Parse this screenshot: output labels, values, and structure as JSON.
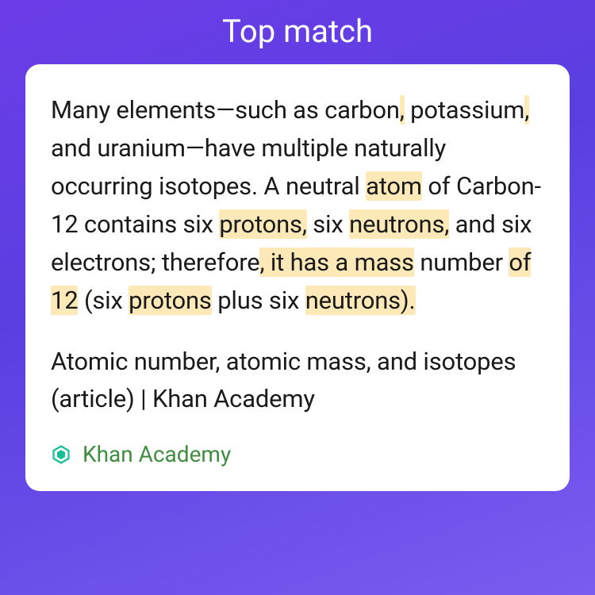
{
  "header": {
    "title": "Top match"
  },
  "card": {
    "snippet_segments": [
      {
        "text": "Many elements—such as carbon",
        "hl": false
      },
      {
        "text": ",",
        "hl": true
      },
      {
        "text": " potassium",
        "hl": false
      },
      {
        "text": ",",
        "hl": true
      },
      {
        "text": " and uranium—have multiple naturally occurring isotopes. A neutral ",
        "hl": false
      },
      {
        "text": "atom",
        "hl": true
      },
      {
        "text": " of Carbon-12 contains six ",
        "hl": false
      },
      {
        "text": "protons,",
        "hl": true
      },
      {
        "text": " six ",
        "hl": false
      },
      {
        "text": "neutrons,",
        "hl": true
      },
      {
        "text": " and six electrons; therefore",
        "hl": false
      },
      {
        "text": ", it has a mass",
        "hl": true
      },
      {
        "text": " number ",
        "hl": false
      },
      {
        "text": "of 12",
        "hl": true
      },
      {
        "text": " (six ",
        "hl": false
      },
      {
        "text": "protons",
        "hl": true
      },
      {
        "text": " plus six ",
        "hl": false
      },
      {
        "text": "neutrons).",
        "hl": true
      }
    ],
    "article_title": "Atomic number, atomic mass, and isotopes (article) | Khan Academy",
    "source": {
      "name": "Khan Academy",
      "icon_color": "#14bf96",
      "name_color": "#3f8d3f"
    },
    "highlight_color": "#fde9b8",
    "background_color": "#ffffff",
    "text_color": "#1a1a1a"
  },
  "page": {
    "gradient_start": "#6b3de8",
    "gradient_end": "#7a5cf0"
  }
}
